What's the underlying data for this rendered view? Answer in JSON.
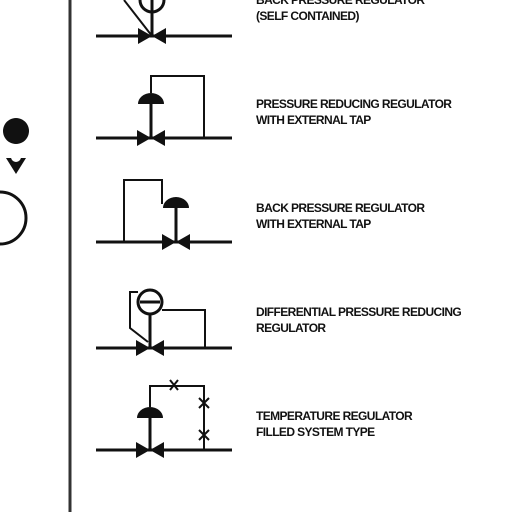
{
  "legend": {
    "items": [
      {
        "line1": "BACK PRESSURE REGULATOR",
        "line2": "(SELF CONTAINED)"
      },
      {
        "line1": "PRESSURE REDUCING REGULATOR",
        "line2": "WITH EXTERNAL TAP"
      },
      {
        "line1": "BACK PRESSURE REGULATOR",
        "line2": "WITH EXTERNAL TAP"
      },
      {
        "line1": "DIFFERENTIAL PRESSURE REDUCING",
        "line2": "REGULATOR"
      },
      {
        "line1": "TEMPERATURE REGULATOR",
        "line2": "FILLED SYSTEM TYPE"
      }
    ]
  },
  "colors": {
    "ink": "#111111",
    "background": "#ffffff"
  }
}
